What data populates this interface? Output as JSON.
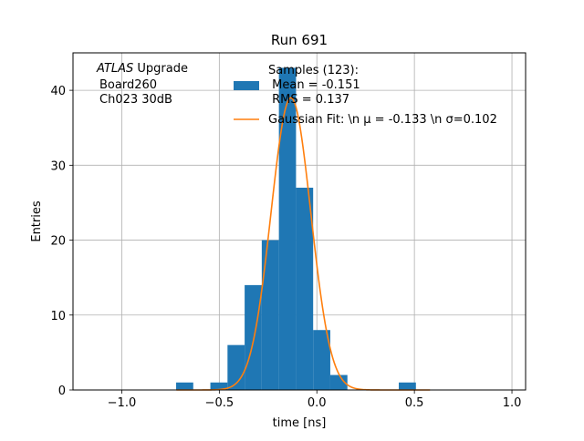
{
  "chart_data": {
    "type": "bar",
    "title": "Run 691",
    "xlabel": "time [ns]",
    "ylabel": "Entries",
    "xlim": [
      -1.25,
      1.07
    ],
    "ylim": [
      0,
      45
    ],
    "grid": true,
    "annotation": {
      "italic": "ATLAS",
      "line1_rest": " Upgrade",
      "line2": "Board260",
      "line3": "Ch023 30dB"
    },
    "x_ticks": [
      {
        "value": -1.0,
        "label": "−1.0"
      },
      {
        "value": -0.5,
        "label": "−0.5"
      },
      {
        "value": 0.0,
        "label": "0.0"
      },
      {
        "value": 0.5,
        "label": "0.5"
      },
      {
        "value": 1.0,
        "label": "1.0"
      }
    ],
    "y_ticks": [
      {
        "value": 0,
        "label": "0"
      },
      {
        "value": 10,
        "label": "10"
      },
      {
        "value": 20,
        "label": "20"
      },
      {
        "value": 30,
        "label": "30"
      },
      {
        "value": 40,
        "label": "40"
      }
    ],
    "histogram": {
      "bin_edges": [
        -0.7214,
        -0.6336,
        -0.5458,
        -0.458,
        -0.3702,
        -0.2824,
        -0.1946,
        -0.1068,
        -0.019,
        0.0688,
        0.1566,
        0.2444,
        0.3322,
        0.42,
        0.5078
      ],
      "counts": [
        1,
        0,
        1,
        6,
        14,
        20,
        43,
        27,
        8,
        2,
        0,
        0,
        0,
        1
      ],
      "color": "#1f77b4"
    },
    "fit": {
      "mu": -0.133,
      "sigma": 0.102,
      "peak": 39,
      "color": "#ff7f0e"
    },
    "legend": {
      "placement": "top-right",
      "hist_lines": [
        "Samples (123):",
        " Mean = -0.151",
        " RMS = 0.137"
      ],
      "fit_label": "Gaussian Fit: \\n μ = -0.133 \\n σ=0.102"
    }
  }
}
